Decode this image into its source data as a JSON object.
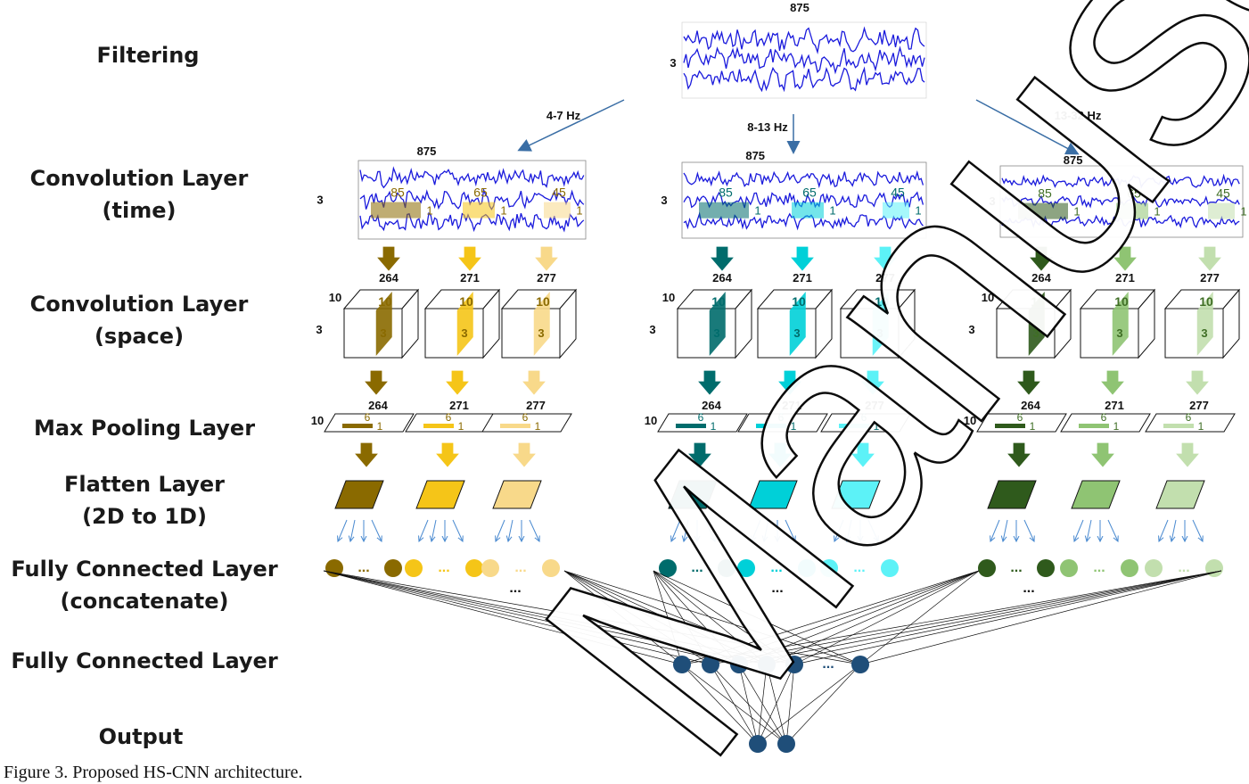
{
  "row_labels": {
    "filtering": "Filtering",
    "conv_time_1": "Convolution Layer",
    "conv_time_2": "(time)",
    "conv_space_1": "Convolution Layer",
    "conv_space_2": "(space)",
    "maxpool": "Max Pooling Layer",
    "flatten_1": "Flatten Layer",
    "flatten_2": "(2D to 1D)",
    "fc_concat_1": "Fully Connected Layer",
    "fc_concat_2": "(concatenate)",
    "fc": "Fully Connected Layer",
    "output": "Output"
  },
  "caption": "Figure 3. Proposed HS-CNN architecture.",
  "input": {
    "width_label": "875",
    "height_label": "3"
  },
  "bands": [
    {
      "label": "4-7 Hz",
      "signal_width": "875",
      "signal_height": "3",
      "kernel_sizes": [
        "85",
        "65",
        "45"
      ],
      "kernel_one": "1",
      "branches": [
        {
          "conv_len": "264",
          "filters": "10",
          "space": "3",
          "pool": "6",
          "pool_one": "1",
          "color": "#8a6a00",
          "light": "#b8900a"
        },
        {
          "conv_len": "271",
          "filters": "10",
          "space": "3",
          "pool": "6",
          "pool_one": "1",
          "color": "#f5c518",
          "light": "#f7d45a"
        },
        {
          "conv_len": "277",
          "filters": "10",
          "space": "3",
          "pool": "6",
          "pool_one": "1",
          "color": "#f8d98a",
          "light": "#fbe3a8"
        }
      ],
      "text_color": "#8a6a00"
    },
    {
      "label": "8-13 Hz",
      "signal_width": "875",
      "signal_height": "3",
      "kernel_sizes": [
        "85",
        "65",
        "45"
      ],
      "kernel_one": "1",
      "branches": [
        {
          "conv_len": "264",
          "filters": "10",
          "space": "3",
          "pool": "6",
          "pool_one": "1",
          "color": "#006c6c",
          "light": "#0a7d7d"
        },
        {
          "conv_len": "271",
          "filters": "10",
          "space": "3",
          "pool": "6",
          "pool_one": "1",
          "color": "#00d0d8",
          "light": "#22e6ee"
        },
        {
          "conv_len": "277",
          "filters": "10",
          "space": "3",
          "pool": "6",
          "pool_one": "1",
          "color": "#5cf2f7",
          "light": "#8ff7fa"
        }
      ],
      "text_color": "#006c6c"
    },
    {
      "label": "13-32 Hz",
      "signal_width": "875",
      "signal_height": "3",
      "kernel_sizes": [
        "85",
        "65",
        "45"
      ],
      "kernel_one": "1",
      "branches": [
        {
          "conv_len": "264",
          "filters": "10",
          "space": "3",
          "pool": "6",
          "pool_one": "1",
          "color": "#2f5a1c",
          "light": "#3f6e25"
        },
        {
          "conv_len": "271",
          "filters": "10",
          "space": "3",
          "pool": "6",
          "pool_one": "1",
          "color": "#8fc473",
          "light": "#a4d08c"
        },
        {
          "conv_len": "277",
          "filters": "10",
          "space": "3",
          "pool": "6",
          "pool_one": "1",
          "color": "#c2dfae",
          "light": "#d3e8c3"
        }
      ],
      "text_color": "#3f6e25"
    }
  ],
  "ellipsis": "...",
  "fc_node_color": "#1f4e79",
  "signal_color": "#1a1adc"
}
